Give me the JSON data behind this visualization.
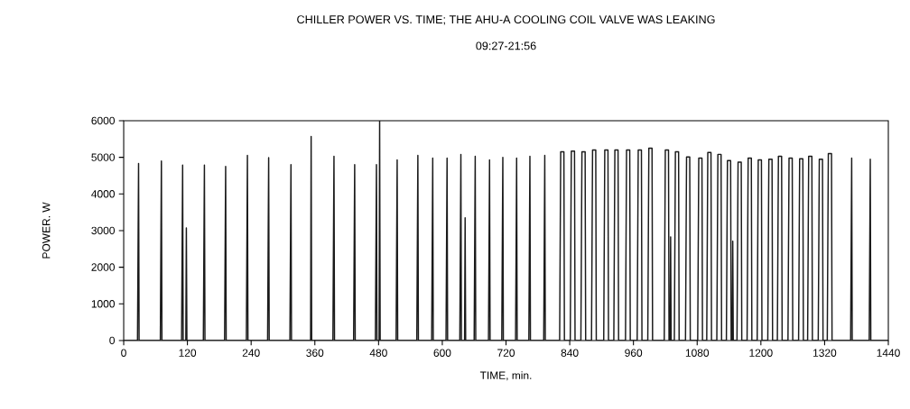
{
  "chart_data": {
    "type": "line",
    "title": "CHILLER POWER VS. TIME; THE AHU-A COOLING COIL VALVE WAS LEAKING",
    "subtitle": "09:27-21:56",
    "xlabel": "TIME, min.",
    "ylabel": "POWER. W",
    "xlim": [
      0,
      1440
    ],
    "xticks": [
      0,
      120,
      240,
      360,
      480,
      600,
      720,
      840,
      960,
      1080,
      1200,
      1320,
      1440
    ],
    "ylim": [
      0,
      6000
    ],
    "yticks": [
      0,
      1000,
      2000,
      3000,
      4000,
      5000,
      6000
    ],
    "grid": false,
    "marker": "none",
    "line_style": "solid",
    "series": [
      {
        "color": "#1a1a1a",
        "x": [
          0,
          26,
          28,
          29,
          69,
          71,
          72,
          109,
          111,
          112,
          117,
          118,
          119,
          150,
          152,
          153,
          190,
          192,
          193,
          231,
          233,
          234,
          271,
          273,
          274,
          313,
          315,
          316,
          352,
          353,
          354,
          394,
          396,
          397,
          433,
          435,
          436,
          474,
          476,
          477,
          481,
          482,
          483,
          513,
          515,
          516,
          552,
          554,
          555,
          580,
          582,
          583,
          607,
          609,
          610,
          633,
          635,
          636,
          642,
          643,
          644,
          660,
          662,
          663,
          687,
          689,
          690,
          712,
          714,
          715,
          738,
          740,
          741,
          763,
          765,
          766,
          791,
          793,
          794,
          821,
          823,
          829,
          830,
          841,
          843,
          849,
          850,
          861,
          863,
          869,
          870,
          881,
          883,
          889,
          890,
          904,
          906,
          912,
          913,
          923,
          925,
          931,
          932,
          945,
          947,
          953,
          954,
          967,
          969,
          975,
          976,
          987,
          989,
          995,
          996,
          1018,
          1020,
          1026,
          1027,
          1029,
          1030,
          1031,
          1037,
          1039,
          1045,
          1046,
          1058,
          1060,
          1066,
          1067,
          1081,
          1083,
          1089,
          1090,
          1098,
          1100,
          1106,
          1107,
          1117,
          1119,
          1125,
          1126,
          1135,
          1137,
          1143,
          1144,
          1146,
          1147,
          1148,
          1155,
          1157,
          1163,
          1164,
          1174,
          1176,
          1182,
          1183,
          1193,
          1195,
          1201,
          1202,
          1213,
          1215,
          1221,
          1222,
          1231,
          1233,
          1239,
          1240,
          1251,
          1253,
          1259,
          1260,
          1271,
          1273,
          1279,
          1280,
          1288,
          1290,
          1296,
          1297,
          1308,
          1310,
          1316,
          1317,
          1325,
          1327,
          1333,
          1334,
          1369,
          1371,
          1372,
          1404,
          1406,
          1407,
          1440
        ],
        "values": [
          0,
          0,
          4830,
          0,
          0,
          4900,
          0,
          0,
          4790,
          0,
          0,
          3070,
          0,
          0,
          4790,
          0,
          0,
          4750,
          0,
          0,
          5050,
          0,
          0,
          4990,
          0,
          0,
          4800,
          0,
          0,
          5570,
          0,
          0,
          5030,
          0,
          0,
          4800,
          0,
          0,
          4800,
          0,
          0,
          6000,
          0,
          0,
          4930,
          0,
          0,
          5050,
          0,
          0,
          4980,
          0,
          0,
          4980,
          0,
          0,
          5080,
          0,
          0,
          3350,
          0,
          0,
          5030,
          0,
          0,
          4930,
          0,
          0,
          5000,
          0,
          0,
          4980,
          0,
          0,
          5030,
          0,
          0,
          5050,
          0,
          0,
          5150,
          5150,
          0,
          0,
          5170,
          5170,
          0,
          0,
          5150,
          5150,
          0,
          0,
          5200,
          5200,
          0,
          0,
          5200,
          5200,
          0,
          0,
          5200,
          5200,
          0,
          0,
          5200,
          5200,
          0,
          0,
          5200,
          5200,
          0,
          0,
          5250,
          5250,
          0,
          0,
          5200,
          5200,
          0,
          0,
          2830,
          0,
          0,
          5150,
          5150,
          0,
          0,
          5010,
          5010,
          0,
          0,
          4980,
          4980,
          0,
          0,
          5130,
          5130,
          0,
          0,
          5080,
          5080,
          0,
          0,
          4910,
          4910,
          0,
          0,
          2710,
          0,
          0,
          4870,
          4870,
          0,
          0,
          4980,
          4980,
          0,
          0,
          4930,
          4930,
          0,
          0,
          4950,
          4950,
          0,
          0,
          5030,
          5030,
          0,
          0,
          4980,
          4980,
          0,
          0,
          4960,
          4960,
          0,
          0,
          5030,
          5030,
          0,
          0,
          4950,
          4950,
          0,
          0,
          5100,
          5100,
          0,
          0,
          4980,
          0,
          0,
          4950,
          0,
          0
        ]
      }
    ]
  }
}
